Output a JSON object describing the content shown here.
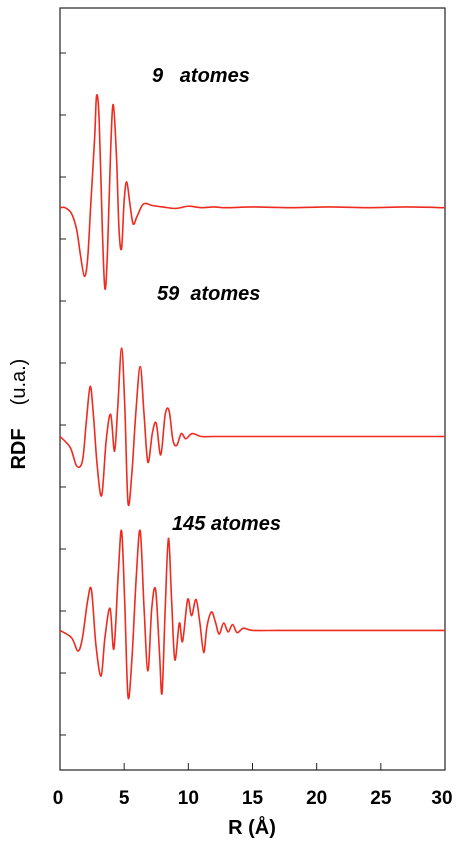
{
  "chart_data": {
    "type": "line",
    "title": "",
    "xlabel": "R (Å)",
    "ylabel_main": "RDF",
    "ylabel_unit": "(u.a.)",
    "xlim": [
      0,
      30
    ],
    "xticks": [
      "0",
      "5",
      "10",
      "15",
      "20",
      "25",
      "30"
    ],
    "grid": false,
    "line_color": "#ee2b1e",
    "series": [
      {
        "name": "9   atomes",
        "baseline": 0.85,
        "points": [
          [
            0,
            0
          ],
          [
            0.4,
            0
          ],
          [
            0.9,
            -0.08
          ],
          [
            1.3,
            -0.3
          ],
          [
            1.6,
            -0.65
          ],
          [
            1.9,
            -0.93
          ],
          [
            2.15,
            -0.7
          ],
          [
            2.4,
            0.05
          ],
          [
            2.7,
            0.95
          ],
          [
            2.85,
            1.52
          ],
          [
            3.05,
            1.2
          ],
          [
            3.3,
            -0.3
          ],
          [
            3.5,
            -1.1
          ],
          [
            3.7,
            -0.6
          ],
          [
            3.95,
            0.8
          ],
          [
            4.15,
            1.4
          ],
          [
            4.4,
            0.7
          ],
          [
            4.6,
            -0.3
          ],
          [
            4.8,
            -0.55
          ],
          [
            5.0,
            0.1
          ],
          [
            5.2,
            0.35
          ],
          [
            5.45,
            0.05
          ],
          [
            5.7,
            -0.22
          ],
          [
            6.0,
            -0.12
          ],
          [
            6.5,
            0.05
          ],
          [
            7.2,
            0.03
          ],
          [
            8,
            0.01
          ],
          [
            9,
            -0.01
          ],
          [
            10,
            0.02
          ],
          [
            11,
            0
          ],
          [
            12,
            0.01
          ],
          [
            13,
            0
          ],
          [
            15,
            0.01
          ],
          [
            18,
            0
          ],
          [
            21,
            0.01
          ],
          [
            24,
            0
          ],
          [
            27,
            0.01
          ],
          [
            30,
            0
          ]
        ]
      },
      {
        "name": "59  atomes",
        "baseline": -0.33,
        "points": [
          [
            0,
            0
          ],
          [
            0.8,
            -0.15
          ],
          [
            1.3,
            -0.4
          ],
          [
            1.75,
            -0.33
          ],
          [
            2.05,
            0.2
          ],
          [
            2.35,
            0.68
          ],
          [
            2.6,
            0.3
          ],
          [
            2.9,
            -0.4
          ],
          [
            3.25,
            -0.8
          ],
          [
            3.6,
            -0.05
          ],
          [
            3.95,
            0.3
          ],
          [
            4.25,
            -0.2
          ],
          [
            4.5,
            0.4
          ],
          [
            4.8,
            1.2
          ],
          [
            5.05,
            0.4
          ],
          [
            5.3,
            -0.9
          ],
          [
            5.6,
            -0.5
          ],
          [
            5.9,
            0.3
          ],
          [
            6.25,
            0.95
          ],
          [
            6.55,
            0.3
          ],
          [
            6.85,
            -0.35
          ],
          [
            7.2,
            0.05
          ],
          [
            7.5,
            0.18
          ],
          [
            7.85,
            -0.25
          ],
          [
            8.2,
            0.3
          ],
          [
            8.5,
            0.35
          ],
          [
            8.8,
            -0.05
          ],
          [
            9.1,
            -0.12
          ],
          [
            9.45,
            0.04
          ],
          [
            9.8,
            -0.03
          ],
          [
            10.3,
            0.04
          ],
          [
            11,
            0
          ],
          [
            12,
            0
          ],
          [
            14,
            0
          ],
          [
            16,
            0
          ],
          [
            19,
            0
          ],
          [
            22,
            0
          ],
          [
            25,
            0
          ],
          [
            28,
            0
          ],
          [
            30,
            0
          ]
        ]
      },
      {
        "name": "145 atomes",
        "baseline": -1.33,
        "points": [
          [
            0,
            0
          ],
          [
            0.9,
            -0.1
          ],
          [
            1.4,
            -0.28
          ],
          [
            1.75,
            -0.1
          ],
          [
            2.15,
            0.4
          ],
          [
            2.45,
            0.55
          ],
          [
            2.8,
            -0.2
          ],
          [
            3.2,
            -0.62
          ],
          [
            3.5,
            -0.1
          ],
          [
            3.9,
            0.3
          ],
          [
            4.2,
            -0.25
          ],
          [
            4.55,
            0.8
          ],
          [
            4.8,
            1.35
          ],
          [
            5.05,
            0.35
          ],
          [
            5.3,
            -0.9
          ],
          [
            5.6,
            -0.4
          ],
          [
            5.95,
            0.75
          ],
          [
            6.25,
            1.35
          ],
          [
            6.55,
            0.3
          ],
          [
            6.85,
            -0.55
          ],
          [
            7.15,
            0.3
          ],
          [
            7.45,
            0.55
          ],
          [
            7.75,
            -0.3
          ],
          [
            7.95,
            -0.85
          ],
          [
            8.2,
            0.3
          ],
          [
            8.45,
            1.25
          ],
          [
            8.7,
            0.4
          ],
          [
            8.95,
            -0.4
          ],
          [
            9.3,
            0.1
          ],
          [
            9.55,
            -0.15
          ],
          [
            9.95,
            0.42
          ],
          [
            10.25,
            0.2
          ],
          [
            10.6,
            0.42
          ],
          [
            10.9,
            0.1
          ],
          [
            11.2,
            -0.3
          ],
          [
            11.45,
            0.05
          ],
          [
            11.8,
            0.25
          ],
          [
            12.1,
            0.12
          ],
          [
            12.4,
            -0.05
          ],
          [
            12.75,
            0.1
          ],
          [
            13.1,
            -0.02
          ],
          [
            13.45,
            0.08
          ],
          [
            13.8,
            -0.03
          ],
          [
            14.3,
            0.03
          ],
          [
            15,
            0
          ],
          [
            17,
            0
          ],
          [
            20,
            0
          ],
          [
            23,
            0
          ],
          [
            26,
            0
          ],
          [
            30,
            0
          ]
        ]
      }
    ]
  }
}
